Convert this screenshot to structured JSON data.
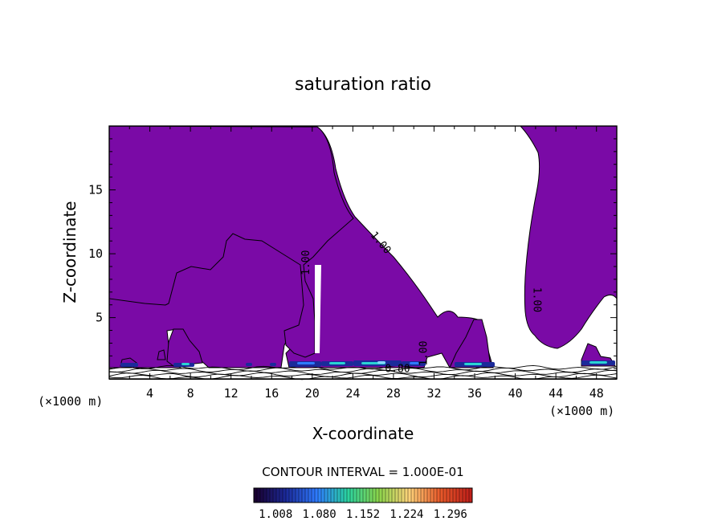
{
  "chart_data": {
    "type": "heatmap",
    "title": "saturation ratio",
    "xlabel": "X-coordinate",
    "ylabel": "Z-coordinate",
    "x_unit_left": "(×1000 m)",
    "x_unit_right": "(×1000 m)",
    "xlim": [
      0,
      50
    ],
    "ylim": [
      0.2,
      20
    ],
    "x_ticks": [
      4,
      8,
      12,
      16,
      20,
      24,
      28,
      32,
      36,
      40,
      44,
      48
    ],
    "y_ticks": [
      5,
      10,
      15
    ],
    "contour_interval_label": "CONTOUR INTERVAL = 1.000E-01",
    "contour_labels": [
      {
        "text": "1.00",
        "x": 26.5,
        "y": 10.7,
        "rotate": 50
      },
      {
        "text": "1.00",
        "x": 19.7,
        "y": 9.3,
        "rotate": -90
      },
      {
        "text": "1.00",
        "x": 31.3,
        "y": 2.2,
        "rotate": -90
      },
      {
        "text": "1.00",
        "x": 41.8,
        "y": 6.4,
        "rotate": 90
      },
      {
        "text": "0.80",
        "x": 28.4,
        "y": 0.75,
        "rotate": 0
      }
    ],
    "fill_color": "#7a0aa6",
    "colorbar": {
      "tick_labels": [
        "1.008",
        "1.080",
        "1.152",
        "1.224",
        "1.296"
      ],
      "min": 0.972,
      "max": 1.332,
      "colors": [
        "#1a0030",
        "#1b2a9a",
        "#2e7bff",
        "#2ad3a0",
        "#8ad44a",
        "#ffd37a",
        "#e85a2a",
        "#c0201a"
      ]
    }
  }
}
